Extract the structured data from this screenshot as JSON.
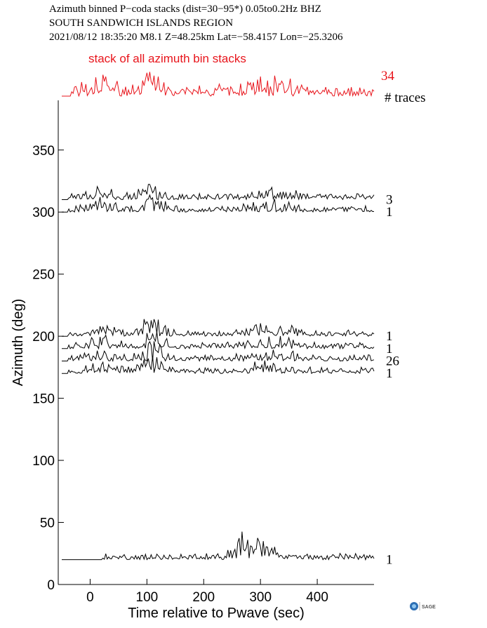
{
  "header": {
    "line1": "Azimuth binned P−coda stacks (dist=30−95*)  0.05to0.2Hz  BHZ",
    "line2": "SOUTH SANDWICH ISLANDS REGION",
    "line3": "2021/08/12  18:35:20  M8.1  Z=48.25km Lat=−58.4157 Lon=−25.3206"
  },
  "colors": {
    "stack": "#e8141b",
    "traces": "#000000",
    "axis": "#000000"
  },
  "logo": {
    "text": "SAGE",
    "icon": "iris-globe-icon"
  },
  "chart_data": {
    "type": "line",
    "title": "",
    "xlabel": "Time relative to Pwave (sec)",
    "ylabel": "Azimuth (deg)",
    "xlim": [
      -50,
      500
    ],
    "ylim": [
      0,
      390
    ],
    "xticks": [
      0,
      100,
      200,
      300,
      400
    ],
    "yticks": [
      0,
      50,
      100,
      150,
      200,
      250,
      300,
      350
    ],
    "grid": false,
    "stack": {
      "label": "stack of all azimuth bin stacks",
      "count": "34",
      "count_header": "# traces"
    },
    "series": [
      {
        "azimuth": 310,
        "count": "3"
      },
      {
        "azimuth": 300,
        "count": "1"
      },
      {
        "azimuth": 200,
        "count": "1"
      },
      {
        "azimuth": 190,
        "count": "1"
      },
      {
        "azimuth": 180,
        "count": "26"
      },
      {
        "azimuth": 170,
        "count": "1"
      },
      {
        "azimuth": 20,
        "count": "1"
      }
    ]
  }
}
